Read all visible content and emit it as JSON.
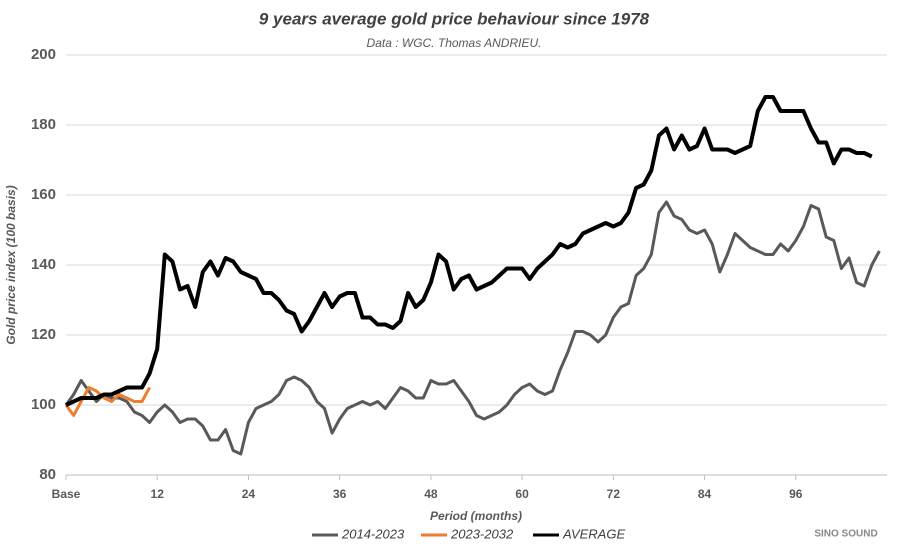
{
  "chart_data": {
    "type": "line",
    "title": "9 years average gold price behaviour since 1978",
    "subtitle": "Data : WGC. Thomas ANDRIEU.",
    "xlabel": "Period (months)",
    "ylabel": "Gold price index (100 basis)",
    "watermark": "SINO SOUND",
    "xlim": [
      0,
      108
    ],
    "ylim": [
      80,
      200
    ],
    "xticks": [
      {
        "value": 0,
        "label": "Base"
      },
      12,
      24,
      36,
      48,
      60,
      72,
      84,
      96
    ],
    "yticks": [
      80,
      100,
      120,
      140,
      160,
      180,
      200
    ],
    "grid": true,
    "legend": "bottom",
    "series": [
      {
        "name": "2014-2023",
        "color": "#595959",
        "x": [
          0,
          1,
          2,
          3,
          4,
          5,
          6,
          7,
          8,
          9,
          10,
          11,
          12,
          13,
          14,
          15,
          16,
          17,
          18,
          19,
          20,
          21,
          22,
          23,
          24,
          25,
          26,
          27,
          28,
          29,
          30,
          31,
          32,
          33,
          34,
          35,
          36,
          37,
          38,
          39,
          40,
          41,
          42,
          43,
          44,
          45,
          46,
          47,
          48,
          49,
          50,
          51,
          52,
          53,
          54,
          55,
          56,
          57,
          58,
          59,
          60,
          61,
          62,
          63,
          64,
          65,
          66,
          67,
          68,
          69,
          70,
          71,
          72,
          73,
          74,
          75,
          76,
          77,
          78,
          79,
          80,
          81,
          82,
          83,
          84,
          85,
          86,
          87,
          88,
          89,
          90,
          91,
          92,
          93,
          94,
          95,
          96,
          97,
          98,
          99,
          100,
          101,
          102,
          103,
          104,
          105,
          106,
          107
        ],
        "values": [
          100,
          103,
          107,
          104,
          101,
          103,
          102,
          102,
          101,
          98,
          97,
          95,
          98,
          100,
          98,
          95,
          96,
          96,
          94,
          90,
          90,
          93,
          87,
          86,
          95,
          99,
          100,
          101,
          103,
          107,
          108,
          107,
          105,
          101,
          99,
          92,
          96,
          99,
          100,
          101,
          100,
          101,
          99,
          102,
          105,
          104,
          102,
          102,
          107,
          106,
          106,
          107,
          104,
          101,
          97,
          96,
          97,
          98,
          100,
          103,
          105,
          106,
          104,
          103,
          104,
          110,
          115,
          121,
          121,
          120,
          118,
          120,
          125,
          128,
          129,
          137,
          139,
          143,
          155,
          158,
          154,
          153,
          150,
          149,
          150,
          146,
          138,
          143,
          149,
          147,
          145,
          144,
          143,
          143,
          146,
          144,
          147,
          151,
          157,
          156,
          148,
          147,
          139,
          142,
          135,
          134,
          140,
          144
        ]
      },
      {
        "name": "2023-2032",
        "color": "#ed7d31",
        "x": [
          0,
          1,
          2,
          3,
          4,
          5,
          6,
          7,
          8,
          9,
          10,
          11
        ],
        "values": [
          100,
          97,
          101,
          105,
          104,
          102,
          101,
          103,
          102,
          101,
          101,
          105
        ]
      },
      {
        "name": "AVERAGE",
        "color": "#000000",
        "x": [
          0,
          1,
          2,
          3,
          4,
          5,
          6,
          7,
          8,
          9,
          10,
          11,
          12,
          13,
          14,
          15,
          16,
          17,
          18,
          19,
          20,
          21,
          22,
          23,
          24,
          25,
          26,
          27,
          28,
          29,
          30,
          31,
          32,
          33,
          34,
          35,
          36,
          37,
          38,
          39,
          40,
          41,
          42,
          43,
          44,
          45,
          46,
          47,
          48,
          49,
          50,
          51,
          52,
          53,
          54,
          55,
          56,
          57,
          58,
          59,
          60,
          61,
          62,
          63,
          64,
          65,
          66,
          67,
          68,
          69,
          70,
          71,
          72,
          73,
          74,
          75,
          76,
          77,
          78,
          79,
          80,
          81,
          82,
          83,
          84,
          85,
          86,
          87,
          88,
          89,
          90,
          91,
          92,
          93,
          94,
          95,
          96,
          97,
          98,
          99,
          100,
          101,
          102,
          103,
          104,
          105,
          106
        ],
        "values": [
          100,
          101,
          102,
          102,
          102,
          103,
          103,
          104,
          105,
          105,
          105,
          109,
          116,
          143,
          141,
          133,
          134,
          128,
          138,
          141,
          137,
          142,
          141,
          138,
          137,
          136,
          132,
          132,
          130,
          127,
          126,
          121,
          124,
          128,
          132,
          128,
          131,
          132,
          132,
          125,
          125,
          123,
          123,
          122,
          124,
          132,
          128,
          130,
          135,
          143,
          141,
          133,
          136,
          137,
          133,
          134,
          135,
          137,
          139,
          139,
          139,
          136,
          139,
          141,
          143,
          146,
          145,
          146,
          149,
          150,
          151,
          152,
          151,
          152,
          155,
          162,
          163,
          167,
          177,
          179,
          173,
          177,
          173,
          174,
          179,
          173,
          173,
          173,
          172,
          173,
          174,
          184,
          188,
          188,
          184,
          184,
          184,
          184,
          179,
          175,
          175,
          169,
          173,
          173,
          172,
          172,
          171
        ]
      }
    ]
  }
}
